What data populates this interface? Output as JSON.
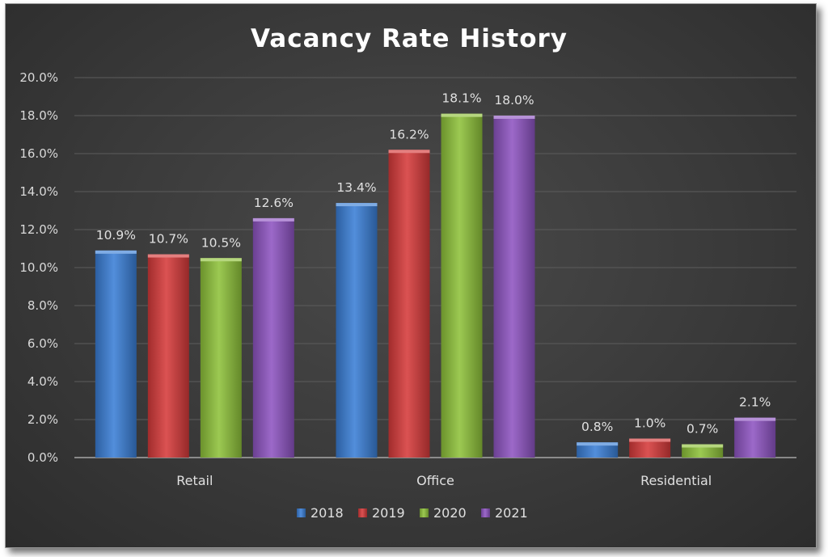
{
  "chart_data": {
    "type": "bar",
    "title": "Vacancy Rate History",
    "categories": [
      "Retail",
      "Office",
      "Residential"
    ],
    "series": [
      {
        "name": "2018",
        "values": [
          10.9,
          13.4,
          0.8
        ],
        "labels": [
          "10.9%",
          "13.4%",
          "0.8%"
        ],
        "color": "#3a7fd6"
      },
      {
        "name": "2019",
        "values": [
          10.7,
          16.2,
          1.0
        ],
        "labels": [
          "10.7%",
          "16.2%",
          "1.0%"
        ],
        "color": "#d63a3a"
      },
      {
        "name": "2020",
        "values": [
          10.5,
          18.1,
          0.7
        ],
        "labels": [
          "10.5%",
          "18.1%",
          "0.7%"
        ],
        "color": "#8fc23a"
      },
      {
        "name": "2021",
        "values": [
          12.6,
          18.0,
          2.1
        ],
        "labels": [
          "12.6%",
          "18.0%",
          "2.1%"
        ],
        "color": "#8e55c2"
      }
    ],
    "yticks": [
      "0.0%",
      "2.0%",
      "4.0%",
      "6.0%",
      "8.0%",
      "10.0%",
      "12.0%",
      "14.0%",
      "16.0%",
      "18.0%",
      "20.0%"
    ],
    "ylim": [
      0,
      20
    ],
    "grid": true,
    "legend": "bottom"
  }
}
